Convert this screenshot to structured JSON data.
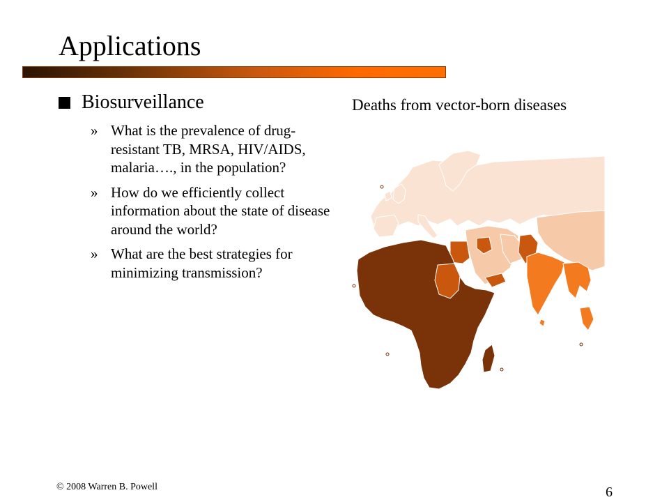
{
  "slide": {
    "title": "Applications",
    "bullet": "Biosurveillance",
    "sub_marker": "»",
    "sub_items": [
      "What is the prevalence of drug-resistant TB, MRSA, HIV/AIDS, malaria…., in the population?",
      "How do we efficiently collect information about the state of disease around the world?",
      "What are the best strategies for minimizing transmission?"
    ],
    "map_caption": "Deaths from vector-born diseases",
    "footer_left": "© 2008 Warren B. Powell",
    "page_number": "6"
  },
  "colors": {
    "title_bar_dark": "#2a1403",
    "title_bar_light": "#ff6f00",
    "map_high": "#7a3208",
    "map_medium": "#c9580e",
    "map_moderate": "#f47a20",
    "map_low": "#f6c9a9",
    "map_lowest": "#fbe3d3"
  }
}
